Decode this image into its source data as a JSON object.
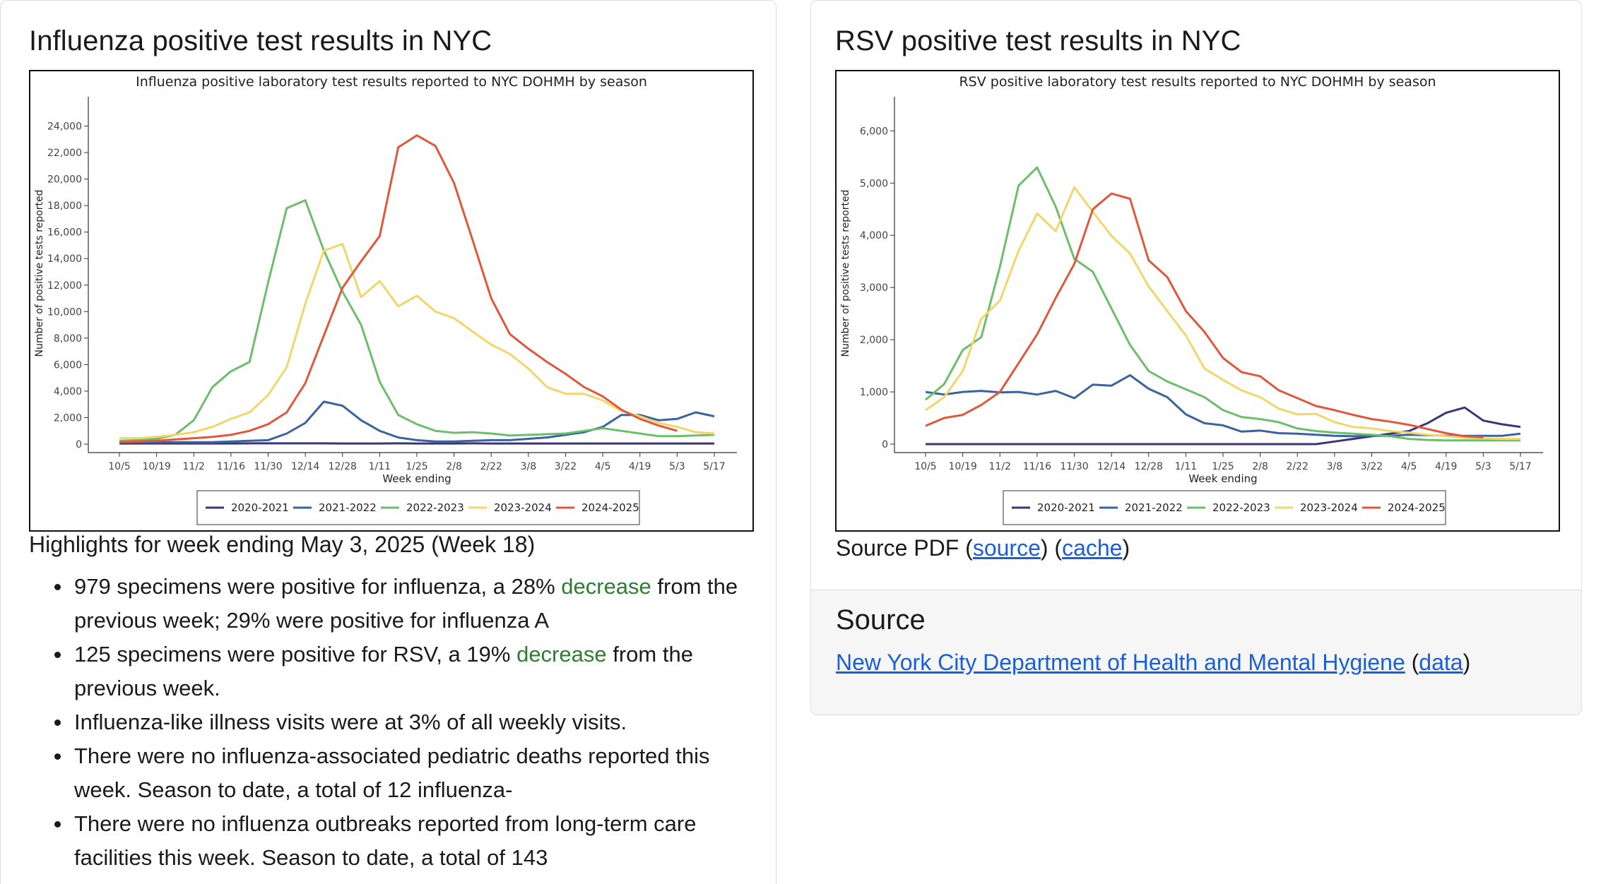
{
  "left_card": {
    "title": "Influenza positive test results in NYC",
    "highlights_title": "Highlights for week ending May 3, 2025 (Week 18)",
    "bullets": [
      {
        "pre": "979 specimens were positive for influenza, a 28% ",
        "accent": "decrease",
        "post": " from the previous week; 29% were positive for influenza A"
      },
      {
        "pre": "125 specimens were positive for RSV, a 19% ",
        "accent": "decrease",
        "post": " from the previous week."
      },
      {
        "pre": "Influenza-like illness visits were at 3% of all weekly visits.",
        "accent": "",
        "post": ""
      },
      {
        "pre": "There were no influenza-associated pediatric deaths reported this week. Season to date, a total of 12 influenza-",
        "accent": "",
        "post": ""
      },
      {
        "pre": "There were no influenza outbreaks reported from long-term care facilities this week. Season to date, a total of 143",
        "accent": "",
        "post": ""
      }
    ]
  },
  "right_card": {
    "title": "RSV positive test results in NYC",
    "source_prefix": "Source PDF (",
    "source_link": "source",
    "source_mid": ") (",
    "cache_link": "cache",
    "source_suffix": ")",
    "footer_title": "Source",
    "footer_link": "New York City Department of Health and Mental Hygiene",
    "footer_mid": " (",
    "footer_data_link": "data",
    "footer_suffix": ")"
  },
  "colors": {
    "2020-2021": "#3b3577",
    "2021-2022": "#3a63a0",
    "2022-2023": "#6cbd6c",
    "2023-2024": "#f0d66b",
    "2024-2025": "#e0583c",
    "accent_green": "#2e7d32",
    "link": "#1a5fd8"
  },
  "chart_data": [
    {
      "type": "line",
      "title": "Influenza positive laboratory test results reported to NYC DOHMH by season",
      "xlabel": "Week ending",
      "ylabel": "Number of positive tests reported",
      "x_ticks": [
        "10/5",
        "10/19",
        "11/2",
        "11/16",
        "11/30",
        "12/14",
        "12/28",
        "1/11",
        "1/25",
        "2/8",
        "2/22",
        "3/8",
        "3/22",
        "4/5",
        "4/19",
        "5/3",
        "5/17"
      ],
      "y_ticks": [
        "0",
        "2,000",
        "4,000",
        "6,000",
        "8,000",
        "10,000",
        "12,000",
        "14,000",
        "16,000",
        "18,000",
        "20,000",
        "22,000",
        "24,000"
      ],
      "ylim": [
        0,
        26000
      ],
      "weeks": 33,
      "legend_position": "bottom",
      "series": [
        {
          "name": "2020-2021",
          "values": [
            50,
            50,
            50,
            50,
            50,
            50,
            50,
            60,
            60,
            60,
            60,
            60,
            50,
            50,
            50,
            60,
            50,
            50,
            50,
            60,
            50,
            50,
            50,
            50,
            50,
            50,
            50,
            50,
            50,
            50,
            50,
            50,
            50
          ]
        },
        {
          "name": "2021-2022",
          "values": [
            150,
            150,
            150,
            150,
            150,
            150,
            200,
            250,
            300,
            800,
            1600,
            3200,
            2900,
            1800,
            1000,
            500,
            300,
            200,
            200,
            250,
            300,
            300,
            400,
            500,
            700,
            900,
            1300,
            2200,
            2200,
            1800,
            1900,
            2400,
            2100
          ]
        },
        {
          "name": "2022-2023",
          "values": [
            250,
            300,
            400,
            700,
            1800,
            4300,
            5500,
            6200,
            12200,
            17800,
            18400,
            14600,
            11500,
            9000,
            4700,
            2200,
            1500,
            1000,
            850,
            900,
            800,
            650,
            700,
            750,
            800,
            1000,
            1200,
            1000,
            800,
            600,
            600,
            650,
            700
          ]
        },
        {
          "name": "2023-2024",
          "values": [
            450,
            450,
            550,
            700,
            900,
            1300,
            1900,
            2400,
            3700,
            5800,
            10600,
            14600,
            15100,
            11100,
            12300,
            10400,
            11200,
            10000,
            9500,
            8500,
            7500,
            6800,
            5700,
            4300,
            3800,
            3800,
            3300,
            2500,
            2100,
            1600,
            1300,
            900,
            800
          ]
        },
        {
          "name": "2024-2025",
          "values": [
            150,
            200,
            250,
            350,
            450,
            550,
            700,
            1000,
            1500,
            2400,
            4600,
            8200,
            11800,
            13800,
            15700,
            22400,
            23300,
            22500,
            19700,
            15400,
            11000,
            8300,
            7200,
            6200,
            5300,
            4300,
            3600,
            2600,
            1900,
            1400,
            1000,
            null,
            null
          ]
        }
      ]
    },
    {
      "type": "line",
      "title": "RSV positive laboratory test results reported to NYC DOHMH by season",
      "xlabel": "Week ending",
      "ylabel": "Number of positive tests reported",
      "x_ticks": [
        "10/5",
        "10/19",
        "11/2",
        "11/16",
        "11/30",
        "12/14",
        "12/28",
        "1/11",
        "1/25",
        "2/8",
        "2/22",
        "3/8",
        "3/22",
        "4/5",
        "4/19",
        "5/3",
        "5/17"
      ],
      "y_ticks": [
        "0",
        "1,000",
        "2,000",
        "3,000",
        "4,000",
        "5,000",
        "6,000"
      ],
      "ylim": [
        0,
        6600
      ],
      "weeks": 33,
      "legend_position": "bottom",
      "series": [
        {
          "name": "2020-2021",
          "values": [
            0,
            0,
            0,
            0,
            0,
            0,
            0,
            0,
            0,
            0,
            0,
            0,
            0,
            0,
            0,
            0,
            0,
            0,
            0,
            0,
            0,
            0,
            50,
            100,
            150,
            200,
            250,
            400,
            600,
            700,
            450,
            380,
            330
          ]
        },
        {
          "name": "2021-2022",
          "values": [
            1000,
            950,
            1000,
            1020,
            990,
            1000,
            950,
            1020,
            880,
            1140,
            1120,
            1320,
            1060,
            900,
            570,
            400,
            360,
            240,
            260,
            210,
            200,
            180,
            160,
            150,
            160,
            160,
            180,
            170,
            160,
            160,
            160,
            160,
            200
          ]
        },
        {
          "name": "2022-2023",
          "values": [
            850,
            1150,
            1800,
            2050,
            3400,
            4950,
            5300,
            4550,
            3550,
            3300,
            2600,
            1900,
            1400,
            1200,
            1050,
            900,
            650,
            520,
            480,
            420,
            300,
            250,
            220,
            200,
            180,
            150,
            100,
            80,
            70,
            70,
            70,
            70,
            70
          ]
        },
        {
          "name": "2023-2024",
          "values": [
            650,
            900,
            1400,
            2400,
            2750,
            3700,
            4420,
            4080,
            4920,
            4450,
            3990,
            3650,
            3020,
            2550,
            2080,
            1450,
            1230,
            1030,
            900,
            680,
            570,
            580,
            420,
            330,
            300,
            250,
            220,
            180,
            150,
            120,
            110,
            100,
            100
          ]
        },
        {
          "name": "2024-2025",
          "values": [
            350,
            500,
            560,
            750,
            1000,
            1550,
            2100,
            2800,
            3450,
            4500,
            4800,
            4700,
            3520,
            3200,
            2550,
            2150,
            1650,
            1380,
            1300,
            1030,
            880,
            730,
            650,
            560,
            480,
            430,
            370,
            290,
            210,
            150,
            130,
            null,
            null
          ]
        }
      ]
    }
  ]
}
